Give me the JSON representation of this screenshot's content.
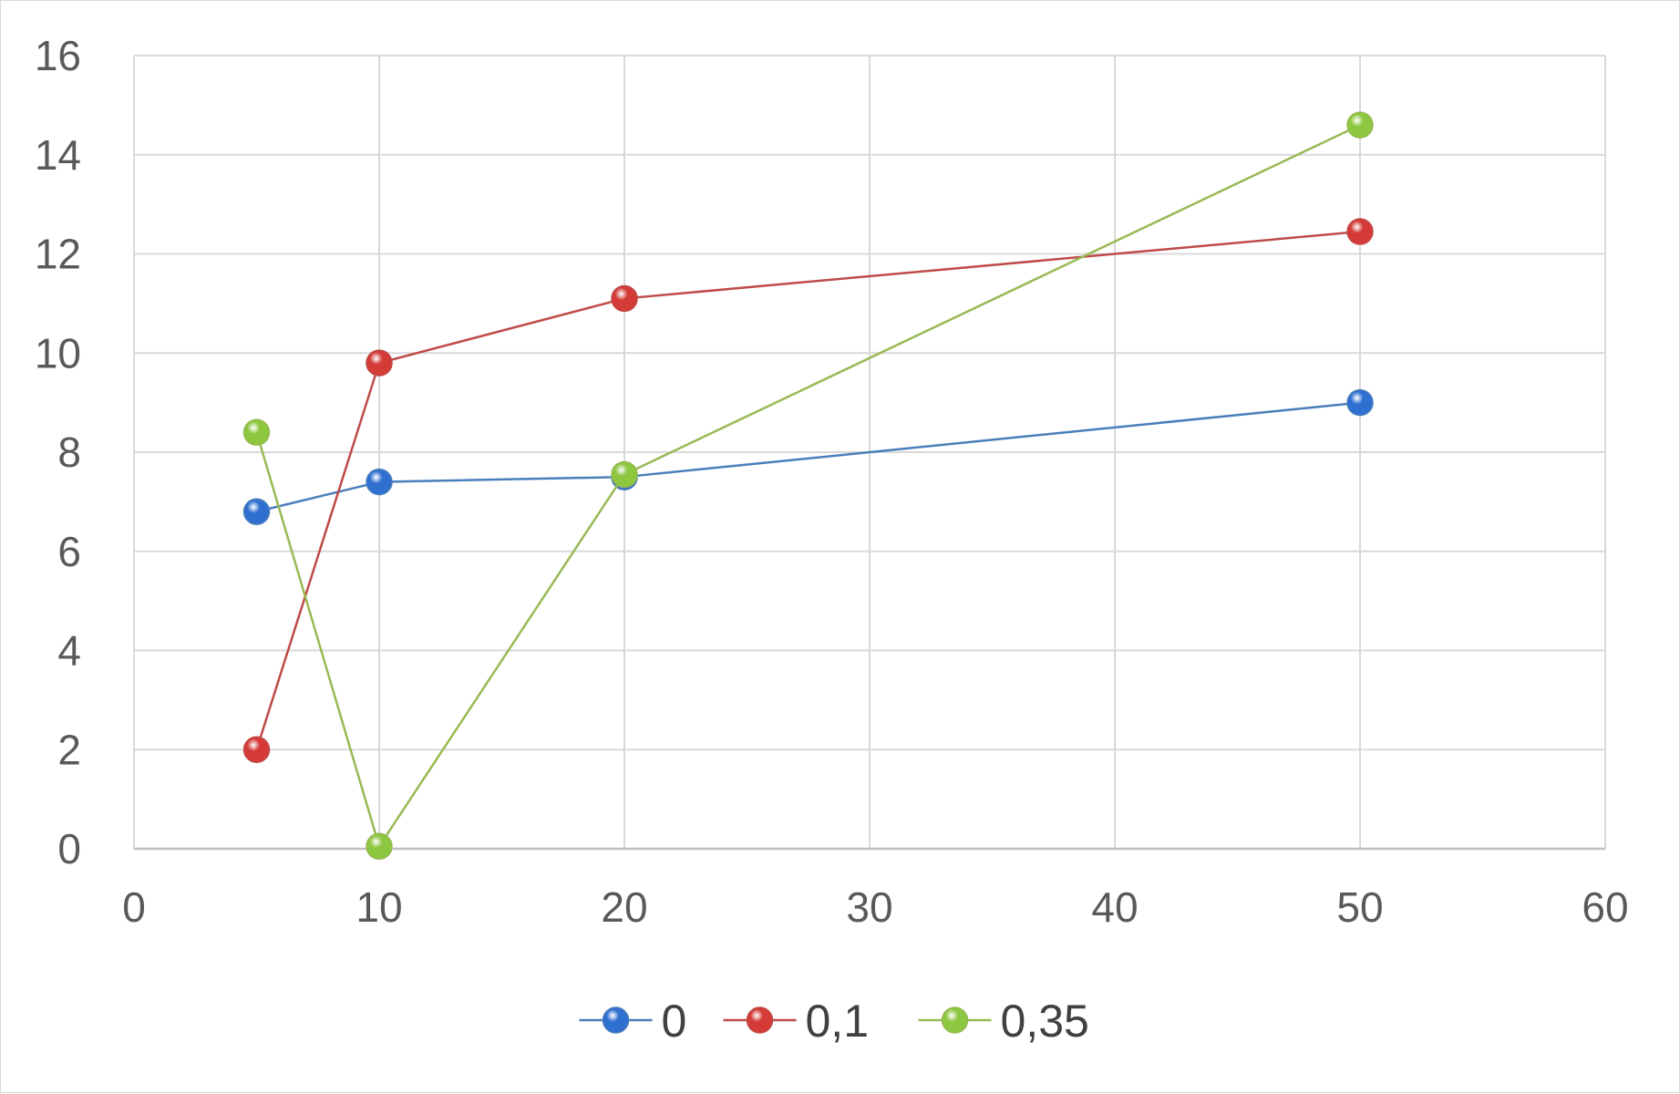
{
  "chart_data": {
    "type": "scatter",
    "title": "",
    "xlabel": "",
    "ylabel": "",
    "xlim": [
      0,
      60
    ],
    "ylim": [
      0,
      16
    ],
    "x_ticks": [
      "0",
      "10",
      "20",
      "30",
      "40",
      "50",
      "60"
    ],
    "y_ticks": [
      "0",
      "2",
      "4",
      "6",
      "8",
      "10",
      "12",
      "14",
      "16"
    ],
    "grid": true,
    "legend_position": "bottom",
    "series": [
      {
        "name": "0",
        "color": "#4a7ebb",
        "marker_color": "#2f6fd0",
        "points": [
          [
            5,
            6.8
          ],
          [
            10,
            7.4
          ],
          [
            20,
            7.5
          ],
          [
            50,
            9.0
          ]
        ]
      },
      {
        "name": "0,1",
        "color": "#be4b48",
        "marker_color": "#d43a36",
        "points": [
          [
            5,
            2.0
          ],
          [
            10,
            9.8
          ],
          [
            20,
            11.1
          ],
          [
            50,
            12.45
          ]
        ]
      },
      {
        "name": "0,35",
        "color": "#98b954",
        "marker_color": "#8dc63f",
        "points": [
          [
            5,
            8.4
          ],
          [
            10,
            0.05
          ],
          [
            20,
            7.55
          ],
          [
            50,
            14.6
          ]
        ]
      }
    ]
  }
}
